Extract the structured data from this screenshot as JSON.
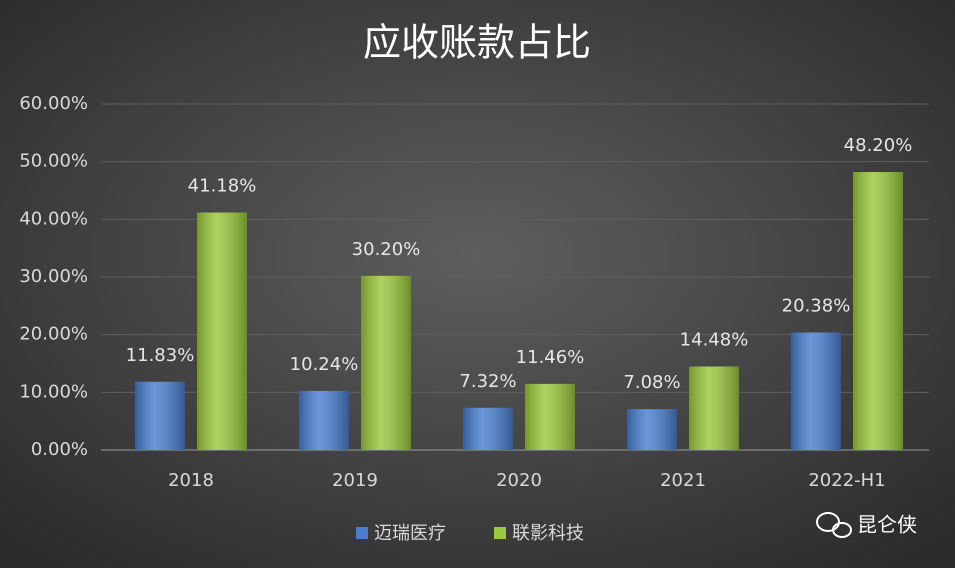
{
  "chart_data": {
    "type": "bar",
    "title": "应收账款占比",
    "categories": [
      "2018",
      "2019",
      "2020",
      "2021",
      "2022-H1"
    ],
    "series": [
      {
        "name": "迈瑞医疗",
        "color": "#4a7fd0",
        "values": [
          11.83,
          10.24,
          7.32,
          7.08,
          20.38
        ],
        "value_labels": [
          "11.83%",
          "10.24%",
          "7.32%",
          "7.08%",
          "20.38%"
        ]
      },
      {
        "name": "联影科技",
        "color": "#9bc83c",
        "values": [
          41.18,
          30.2,
          11.46,
          14.48,
          48.2
        ],
        "value_labels": [
          "41.18%",
          "30.20%",
          "11.46%",
          "14.48%",
          "48.20%"
        ]
      }
    ],
    "ylim": [
      0,
      60
    ],
    "yticks": [
      {
        "value": 0,
        "label": "0.00%"
      },
      {
        "value": 10,
        "label": "10.00%"
      },
      {
        "value": 20,
        "label": "20.00%"
      },
      {
        "value": 30,
        "label": "30.00%"
      },
      {
        "value": 40,
        "label": "40.00%"
      },
      {
        "value": 50,
        "label": "50.00%"
      },
      {
        "value": 60,
        "label": "60.00%"
      }
    ],
    "grid": true,
    "watermark": "昆仑侠"
  }
}
